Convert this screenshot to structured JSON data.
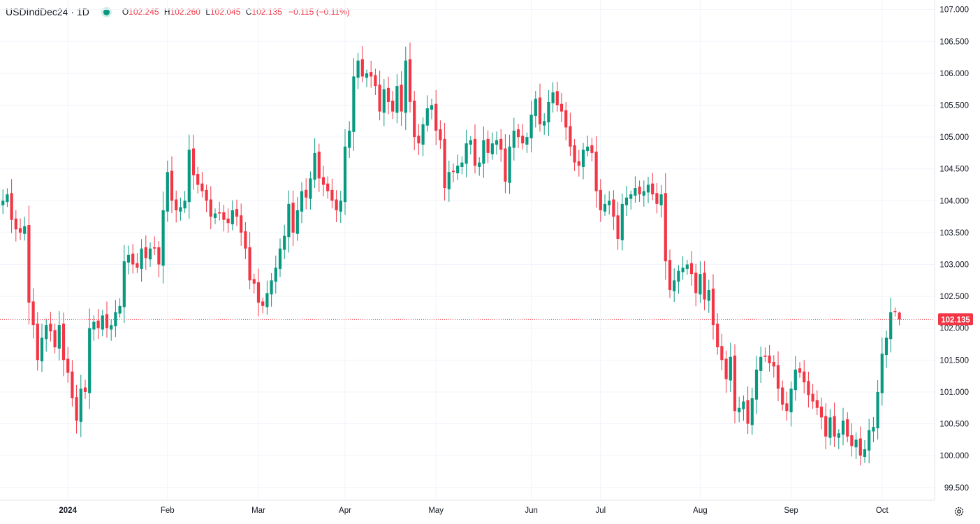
{
  "legend": {
    "symbol": "USDIndDec24 · 1D",
    "status_color": "#089981",
    "o_label": "O",
    "o_value": "102.245",
    "h_label": "H",
    "h_value": "102.260",
    "l_label": "L",
    "l_value": "102.045",
    "c_label": "C",
    "c_value": "102.135",
    "change": "−0.115 (−0.11%)"
  },
  "colors": {
    "up": "#089981",
    "down": "#f23645",
    "grid": "#f0f3fa",
    "axis": "#e0e3eb"
  },
  "last_price_label": "102.135",
  "settings_icon": "gear-icon",
  "chart_data": {
    "type": "candlestick",
    "title": "",
    "y_axis": {
      "position": "right",
      "ylim": [
        99.3,
        107.15
      ],
      "ticks": [
        "107.000",
        "106.500",
        "106.000",
        "105.500",
        "105.000",
        "104.500",
        "104.000",
        "103.500",
        "103.000",
        "102.500",
        "102.000",
        "101.500",
        "101.000",
        "100.500",
        "100.000",
        "99.500"
      ]
    },
    "x_axis": {
      "ticks": [
        {
          "label": "2024",
          "index": 16,
          "bold": true
        },
        {
          "label": "Feb",
          "index": 39
        },
        {
          "label": "Mar",
          "index": 60
        },
        {
          "label": "Apr",
          "index": 80
        },
        {
          "label": "May",
          "index": 101
        },
        {
          "label": "Jun",
          "index": 123
        },
        {
          "label": "Jul",
          "index": 139
        },
        {
          "label": "Aug",
          "index": 162
        },
        {
          "label": "Sep",
          "index": 183
        },
        {
          "label": "Oct",
          "index": 204
        }
      ]
    },
    "last_price": 102.135,
    "closes": [
      103.95,
      104.0,
      104.1,
      103.7,
      103.55,
      103.5,
      103.6,
      102.4,
      102.05,
      101.5,
      101.85,
      102.05,
      101.95,
      101.7,
      102.05,
      101.5,
      101.3,
      100.9,
      100.55,
      101.05,
      101.0,
      102.0,
      102.1,
      102.0,
      102.2,
      102.0,
      102.05,
      102.25,
      102.35,
      103.05,
      103.15,
      103.0,
      102.95,
      103.25,
      103.1,
      103.25,
      103.25,
      103.0,
      103.85,
      104.45,
      104.0,
      103.85,
      103.9,
      104.0,
      104.8,
      104.4,
      104.25,
      104.15,
      104.0,
      103.75,
      103.8,
      103.8,
      103.7,
      103.65,
      103.85,
      103.75,
      103.5,
      103.25,
      102.75,
      102.7,
      102.4,
      102.35,
      102.55,
      102.75,
      102.95,
      103.25,
      103.45,
      103.95,
      103.5,
      103.85,
      104.15,
      104.05,
      104.35,
      104.75,
      104.35,
      104.25,
      104.15,
      104.0,
      103.85,
      104.0,
      104.85,
      105.1,
      105.95,
      106.2,
      105.95,
      106.0,
      105.95,
      105.8,
      105.4,
      105.75,
      105.55,
      105.4,
      105.8,
      105.4,
      106.2,
      105.55,
      105.0,
      104.9,
      105.2,
      105.45,
      105.5,
      105.1,
      104.95,
      104.2,
      104.45,
      104.45,
      104.55,
      104.6,
      104.9,
      104.95,
      104.55,
      104.6,
      104.95,
      104.75,
      104.9,
      104.95,
      104.8,
      104.3,
      104.85,
      105.1,
      105.0,
      104.9,
      105.0,
      105.35,
      105.6,
      105.2,
      105.25,
      105.55,
      105.7,
      105.5,
      105.4,
      105.15,
      104.85,
      104.6,
      104.55,
      104.8,
      104.85,
      104.75,
      104.15,
      103.85,
      103.95,
      104.0,
      103.75,
      103.4,
      103.95,
      104.05,
      104.1,
      104.2,
      104.1,
      104.15,
      104.25,
      104.1,
      103.95,
      104.1,
      103.05,
      102.6,
      102.75,
      102.9,
      102.95,
      103.0,
      102.85,
      102.55,
      102.85,
      102.45,
      102.6,
      102.05,
      101.7,
      101.5,
      101.2,
      101.55,
      100.7,
      100.75,
      100.85,
      100.5,
      100.9,
      101.35,
      101.55,
      101.55,
      101.45,
      101.4,
      101.05,
      100.8,
      100.7,
      101.05,
      101.35,
      101.3,
      101.15,
      100.95,
      100.85,
      100.75,
      100.6,
      100.3,
      100.6,
      100.3,
      100.35,
      100.55,
      100.3,
      100.15,
      100.25,
      100.0,
      100.1,
      100.4,
      100.45,
      101.0,
      101.6,
      101.85,
      102.25,
      102.25,
      102.135
    ],
    "last_bar": {
      "open": 102.245,
      "high": 102.26,
      "low": 102.045,
      "close": 102.135
    }
  }
}
